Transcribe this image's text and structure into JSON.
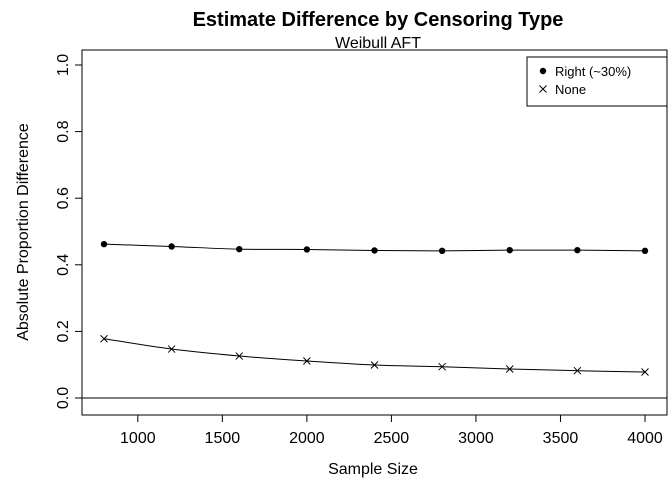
{
  "chart_data": {
    "type": "line",
    "title": "Estimate Difference by Censoring Type",
    "subtitle": "Weibull AFT",
    "xlabel": "Sample Size",
    "ylabel": "Absolute Proportion Difference",
    "xlim": [
      800,
      4000
    ],
    "ylim": [
      0,
      1
    ],
    "x_ticks": [
      "1000",
      "1500",
      "2000",
      "2500",
      "3000",
      "3500",
      "4000"
    ],
    "y_ticks": [
      "0.0",
      "0.2",
      "0.4",
      "0.6",
      "0.8",
      "1.0"
    ],
    "reference_line_y": 0,
    "grid": false,
    "legend_position": "top-right",
    "x": [
      800,
      1200,
      1600,
      2000,
      2400,
      2800,
      3200,
      3600,
      4000
    ],
    "series": [
      {
        "name": "Right (~30%)",
        "marker": "filled-circle",
        "values": [
          0.462,
          0.455,
          0.447,
          0.446,
          0.443,
          0.442,
          0.444,
          0.444,
          0.442
        ]
      },
      {
        "name": "None",
        "marker": "cross",
        "values": [
          0.178,
          0.147,
          0.126,
          0.111,
          0.099,
          0.094,
          0.087,
          0.082,
          0.078
        ]
      }
    ]
  }
}
